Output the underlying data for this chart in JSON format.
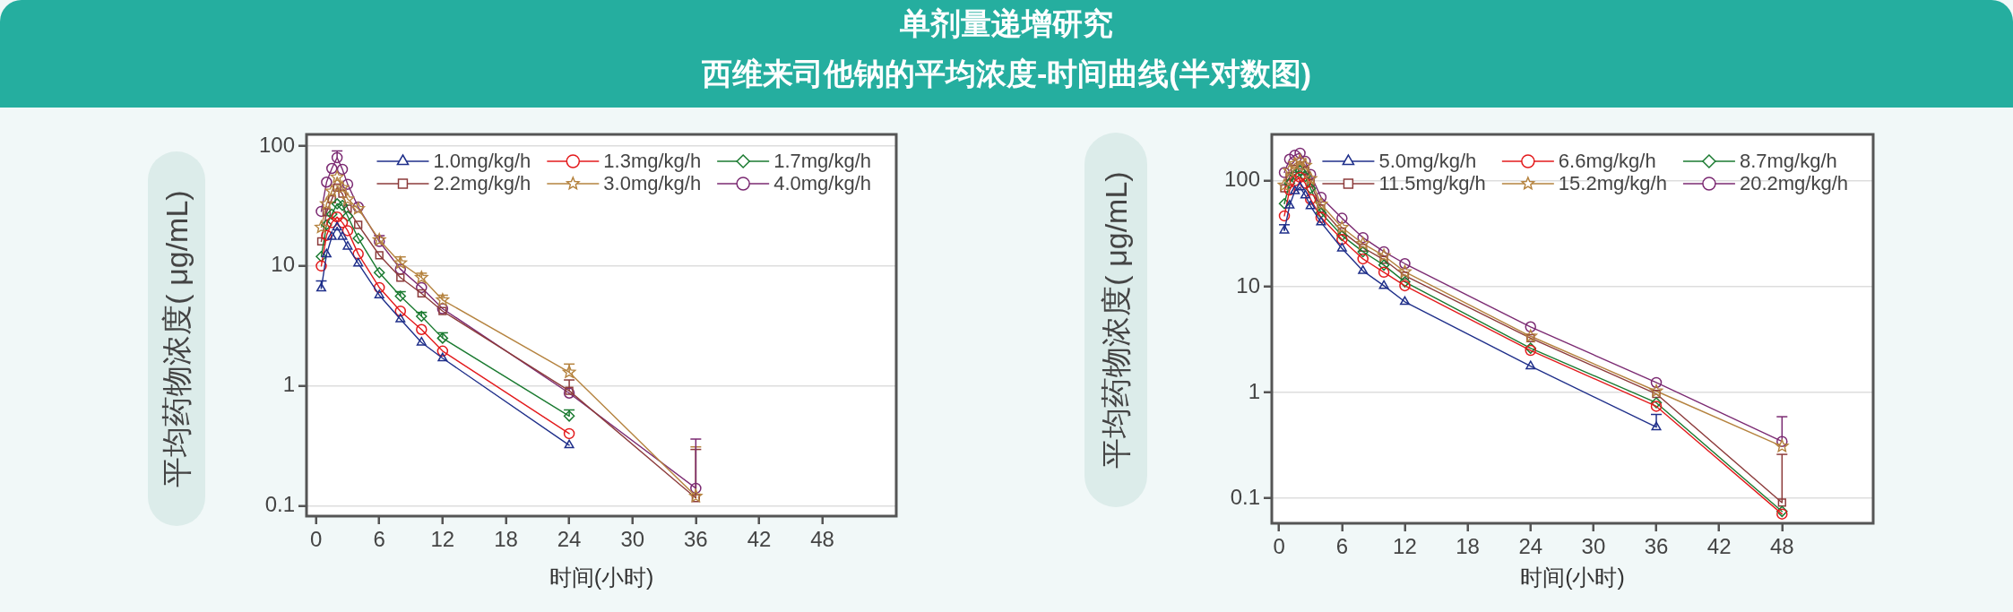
{
  "chart_data": [
    {
      "type": "line",
      "title": "单剂量递增研究",
      "subtitle": "西维来司他钠的平均浓度-时间曲线(半对数图)",
      "xlabel": "时间(小时)",
      "ylabel": "平均药物浓度( μg/mL)",
      "x": [
        0.5,
        1,
        1.5,
        2,
        2.5,
        3,
        4,
        6,
        8,
        10,
        12,
        24,
        36
      ],
      "series": [
        {
          "name": "1.0mg/kg/h",
          "color": "#1f2f8a",
          "marker": "triangle",
          "values": [
            6.5,
            12.5,
            17.5,
            21,
            17.5,
            14.5,
            10.5,
            5.7,
            3.6,
            2.3,
            1.7,
            0.32,
            null
          ],
          "errors": [
            [
              6.5,
              7.5
            ],
            null,
            null,
            null,
            null,
            null,
            null,
            null,
            null,
            null,
            null,
            null,
            null
          ]
        },
        {
          "name": "1.3mg/kg/h",
          "color": "#e31a1c",
          "marker": "circle",
          "values": [
            10,
            18,
            23,
            25.6,
            23,
            19.7,
            12.6,
            6.6,
            4.2,
            2.95,
            1.95,
            0.4,
            null
          ]
        },
        {
          "name": "1.7mg/kg/h",
          "color": "#1a7a30",
          "marker": "diamond",
          "values": [
            12,
            22,
            27,
            33,
            32,
            26,
            17,
            8.8,
            5.6,
            3.8,
            2.5,
            0.56,
            null
          ],
          "errors": [
            null,
            null,
            null,
            null,
            null,
            null,
            null,
            null,
            [
              5.6,
              6.1
            ],
            [
              3.8,
              4.1
            ],
            [
              2.5,
              2.77
            ],
            [
              0.56,
              0.63
            ],
            null
          ]
        },
        {
          "name": "2.2mg/kg/h",
          "color": "#8c3b3b",
          "marker": "square",
          "values": [
            16,
            28,
            36,
            45,
            40,
            30,
            22,
            12.3,
            8,
            5.9,
            4.2,
            0.91,
            0.116
          ],
          "errors": [
            null,
            null,
            null,
            null,
            null,
            null,
            null,
            null,
            null,
            null,
            null,
            [
              0.91,
              1.12
            ],
            [
              0.116,
              0.295
            ]
          ]
        },
        {
          "name": "3.0mg/kg/h",
          "color": "#b5833f",
          "marker": "star",
          "values": [
            21,
            33,
            42,
            55,
            45,
            36,
            30,
            16.5,
            10.6,
            8,
            5.2,
            1.3,
            0.12
          ],
          "errors": [
            null,
            null,
            null,
            null,
            null,
            null,
            null,
            null,
            [
              10.6,
              11.9
            ],
            [
              8,
              8.7
            ],
            [
              5.2,
              5.7
            ],
            [
              1.3,
              1.52
            ],
            [
              0.12,
              0.31
            ]
          ]
        },
        {
          "name": "4.0mg/kg/h",
          "color": "#7b2a72",
          "marker": "circle",
          "values": [
            28.5,
            50,
            65,
            80,
            64,
            48,
            31,
            16,
            9.4,
            6.6,
            4.4,
            0.87,
            0.14
          ],
          "errors": [
            null,
            null,
            null,
            [
              80,
              91
            ],
            null,
            null,
            null,
            [
              16,
              17.9
            ],
            null,
            null,
            null,
            null,
            [
              0.14,
              0.36
            ]
          ]
        }
      ],
      "xlim": [
        -0.9,
        55
      ],
      "ylim": [
        0.082,
        125
      ],
      "xticks": [
        0,
        6,
        12,
        18,
        24,
        30,
        36,
        42,
        48
      ],
      "yticks": [
        0.1,
        1,
        10,
        100
      ],
      "log": "y",
      "grid": "y",
      "legend": "top right"
    },
    {
      "type": "line",
      "xlabel": "时间(小时)",
      "ylabel": "平均药物浓度( μg/mL)",
      "x": [
        0.5,
        1,
        1.5,
        2,
        2.5,
        3,
        4,
        6,
        8,
        10,
        12,
        24,
        36,
        48
      ],
      "series": [
        {
          "name": "5.0mg/kg/h",
          "color": "#1f2f8a",
          "marker": "triangle",
          "values": [
            34,
            58.6,
            80,
            87,
            73,
            57.7,
            40.6,
            23,
            14.1,
            10.2,
            7.2,
            1.77,
            0.47,
            null
          ],
          "errors": [
            [
              34,
              38.5
            ],
            null,
            null,
            null,
            null,
            null,
            null,
            null,
            null,
            null,
            null,
            null,
            [
              0.47,
              0.62
            ],
            null
          ]
        },
        {
          "name": "6.6mg/kg/h",
          "color": "#e31a1c",
          "marker": "circle",
          "values": [
            46.7,
            82,
            100,
            108,
            95,
            67,
            45,
            28,
            18.3,
            13.7,
            10.2,
            2.5,
            0.74,
            0.071
          ]
        },
        {
          "name": "8.7mg/kg/h",
          "color": "#1a7a30",
          "marker": "diamond",
          "values": [
            61,
            95,
            115,
            125,
            110,
            85,
            50,
            30.4,
            21.4,
            16,
            11.1,
            2.62,
            0.8,
            0.075
          ]
        },
        {
          "name": "11.5mg/kg/h",
          "color": "#8c3b3b",
          "marker": "square",
          "values": [
            85,
            110,
            130,
            140,
            125,
            95,
            55,
            33.2,
            23.4,
            18,
            12.7,
            3.26,
            0.97,
            0.091
          ],
          "errors": [
            null,
            null,
            null,
            null,
            null,
            null,
            null,
            null,
            null,
            null,
            null,
            null,
            null,
            [
              0.091,
              0.26
            ]
          ]
        },
        {
          "name": "15.2mg/kg/h",
          "color": "#b5833f",
          "marker": "star",
          "values": [
            91,
            125,
            145,
            155,
            140,
            105,
            60,
            36.2,
            25.5,
            19.6,
            13.8,
            3.4,
            1.03,
            0.31
          ]
        },
        {
          "name": "20.2mg/kg/h",
          "color": "#7b2a72",
          "marker": "circle",
          "values": [
            120,
            160,
            175,
            183,
            153,
            115,
            70,
            44.3,
            29.1,
            21.4,
            16.5,
            4.17,
            1.24,
            0.344
          ],
          "errors": [
            null,
            null,
            null,
            null,
            null,
            null,
            null,
            null,
            null,
            null,
            null,
            null,
            null,
            [
              0.344,
              0.59
            ]
          ]
        }
      ],
      "xlim": [
        -0.7,
        56.7
      ],
      "ylim": [
        0.058,
        275
      ],
      "xticks": [
        0,
        6,
        12,
        18,
        24,
        30,
        36,
        42,
        48
      ],
      "yticks": [
        0.1,
        1,
        10,
        100
      ],
      "log": "y",
      "grid": "y",
      "legend": "top right"
    }
  ]
}
